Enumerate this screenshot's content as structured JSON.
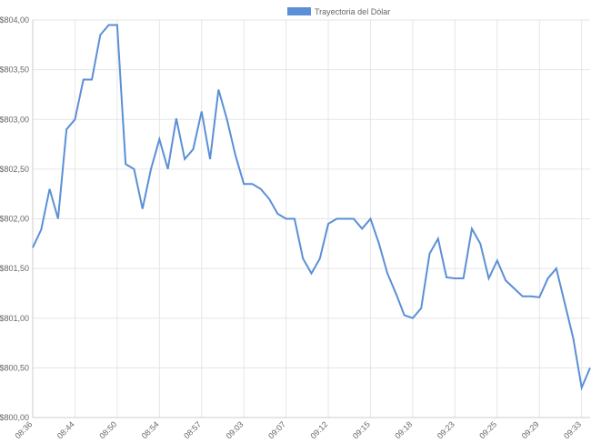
{
  "chart_data": {
    "type": "line",
    "categories": [
      "08:36",
      null,
      null,
      null,
      null,
      "08:44",
      null,
      null,
      null,
      null,
      "08:50",
      null,
      null,
      null,
      null,
      "08:54",
      null,
      null,
      null,
      null,
      "08:57",
      null,
      null,
      null,
      null,
      "09:03",
      null,
      null,
      null,
      null,
      "09:07",
      null,
      null,
      null,
      null,
      "09:12",
      null,
      null,
      null,
      null,
      "09:15",
      null,
      null,
      null,
      null,
      "09:18",
      null,
      null,
      null,
      null,
      "09:23",
      null,
      null,
      null,
      null,
      "09:25",
      null,
      null,
      null,
      null,
      "09:29",
      null,
      null,
      null,
      null,
      "09:33",
      null
    ],
    "series": [
      {
        "name": "Trayectoria del Dólar",
        "color": "#5b8fd6",
        "values": [
          801.71,
          801.89,
          802.3,
          802.0,
          802.9,
          803.0,
          803.4,
          803.4,
          803.85,
          803.95,
          803.95,
          802.55,
          802.5,
          802.1,
          802.5,
          802.8,
          802.5,
          803.01,
          802.6,
          802.7,
          803.08,
          802.6,
          803.3,
          803.0,
          802.64,
          802.35,
          802.35,
          802.3,
          802.2,
          802.05,
          802.0,
          802.0,
          801.6,
          801.45,
          801.6,
          801.95,
          802.0,
          802.0,
          802.0,
          801.9,
          802.0,
          801.75,
          801.45,
          801.25,
          801.03,
          801.0,
          801.1,
          801.65,
          801.8,
          801.41,
          801.4,
          801.4,
          801.9,
          801.75,
          801.4,
          801.58,
          801.38,
          801.3,
          801.22,
          801.22,
          801.21,
          801.4,
          801.5,
          801.15,
          800.8,
          800.3,
          800.5
        ]
      }
    ],
    "ylim": [
      800,
      804
    ],
    "yticks": [
      {
        "value": 800,
        "label": "$800,00"
      },
      {
        "value": 800.5,
        "label": "$800,50"
      },
      {
        "value": 801,
        "label": "$801,00"
      },
      {
        "value": 801.5,
        "label": "$801,50"
      },
      {
        "value": 802,
        "label": "$802,00"
      },
      {
        "value": 802.5,
        "label": "$802,50"
      },
      {
        "value": 803,
        "label": "$803,00"
      },
      {
        "value": 803.5,
        "label": "$803,50"
      },
      {
        "value": 804,
        "label": "$804,00"
      }
    ],
    "grid": true
  }
}
